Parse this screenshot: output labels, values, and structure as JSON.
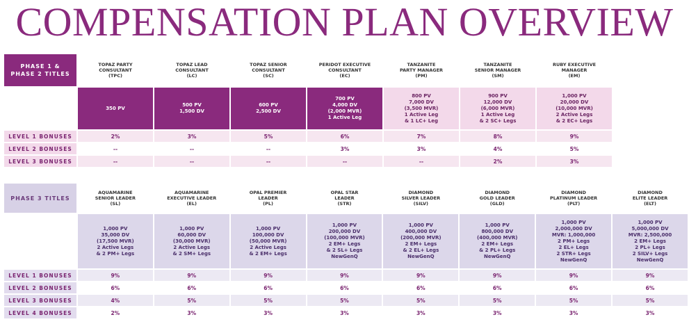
{
  "title": "COMPENSATION PLAN OVERVIEW",
  "phase12": {
    "label_line1": "PHASE 1 &",
    "label_line2": "PHASE 2 TITLES",
    "titles": [
      {
        "name": "TOPAZ PARTY\nCONSULTANT\n(TPC)",
        "req": "350 PV"
      },
      {
        "name": "TOPAZ LEAD\nCONSULTANT\n(LC)",
        "req": "500 PV\n1,500 DV"
      },
      {
        "name": "TOPAZ SENIOR\nCONSULTANT\n(SC)",
        "req": "600 PV\n2,500 DV"
      },
      {
        "name": "PERIDOT EXECUTIVE\nCONSULTANT\n(EC)",
        "req": "700 PV\n4,000 DV\n(2,000 MVR)\n1 Active Leg"
      },
      {
        "name": "TANZANITE\nPARTY MANAGER\n(PM)",
        "req": "800 PV\n7,000 DV\n(3,500 MVR)\n1 Active Leg\n& 1 LC+ Leg"
      },
      {
        "name": "TANZANITE\nSENIOR MANAGER\n(SM)",
        "req": "900 PV\n12,000 DV\n(6,000 MVR)\n1 Active Leg\n& 2 SC+ Legs"
      },
      {
        "name": "RUBY EXECUTIVE\nMANAGER\n(EM)",
        "req": "1,000 PV\n20,000 DV\n(10,000 MVR)\n2 Active Legs\n& 2 EC+ Legs"
      }
    ],
    "levels": [
      {
        "label": "LEVEL 1 BONUSES",
        "values": [
          "2%",
          "3%",
          "5%",
          "6%",
          "7%",
          "8%",
          "9%"
        ]
      },
      {
        "label": "LEVEL 2 BONUSES",
        "values": [
          "--",
          "--",
          "--",
          "3%",
          "3%",
          "4%",
          "5%"
        ]
      },
      {
        "label": "LEVEL 3 BONUSES",
        "values": [
          "--",
          "--",
          "--",
          "--",
          "--",
          "2%",
          "3%"
        ]
      }
    ]
  },
  "phase3": {
    "label": "PHASE 3 TITLES",
    "titles": [
      {
        "name": "AQUAMARINE\nSENIOR LEADER\n(SL)",
        "req": "1,000 PV\n35,000 DV\n(17,500 MVR)\n2 Active Legs\n& 2 PM+ Legs"
      },
      {
        "name": "AQUAMARINE\nEXECUTIVE LEADER\n(EL)",
        "req": "1,000 PV\n60,000 DV\n(30,000 MVR)\n2 Active Legs\n& 2 SM+ Legs"
      },
      {
        "name": "OPAL PREMIER\nLEADER\n(PL)",
        "req": "1,000 PV\n100,000 DV\n(50,000 MVR)\n2 Active Legs\n& 2 EM+ Legs"
      },
      {
        "name": "OPAL STAR\nLEADER\n(STR)",
        "req": "1,000 PV\n200,000 DV\n(100,000 MVR)\n2 EM+ Legs\n& 2 SL+ Legs\nNewGenQ"
      },
      {
        "name": "DIAMOND\nSILVER LEADER\n(SILV)",
        "req": "1,000 PV\n400,000 DV\n(200,000 MVR)\n2 EM+ Legs\n& 2 EL+ Legs\nNewGenQ"
      },
      {
        "name": "DIAMOND\nGOLD LEADER\n(GLD)",
        "req": "1,000 PV\n800,000 DV\n(400,000 MVR)\n2 EM+ Legs\n& 2 PL+ Legs\nNewGenQ"
      },
      {
        "name": "DIAMOND\nPLATINUM LEADER\n(PLT)",
        "req": "1,000 PV\n2,000,000 DV\nMVR: 1,000,000\n2 PM+ Legs\n2 EL+ Legs\n2 STR+ Legs\nNewGenQ"
      },
      {
        "name": "DIAMOND\nELITE LEADER\n(ELT)",
        "req": "1,000 PV\n5,000,000 DV\nMVR: 2,500,000\n2 EM+ Legs\n2 PL+ Legs\n2 SILV+ Legs\nNewGenQ"
      }
    ],
    "levels": [
      {
        "label": "LEVEL 1 BONUSES",
        "values": [
          "9%",
          "9%",
          "9%",
          "9%",
          "9%",
          "9%",
          "9%",
          "9%"
        ]
      },
      {
        "label": "LEVEL 2 BONUSES",
        "values": [
          "6%",
          "6%",
          "6%",
          "6%",
          "6%",
          "6%",
          "6%",
          "6%"
        ]
      },
      {
        "label": "LEVEL 3 BONUSES",
        "values": [
          "4%",
          "5%",
          "5%",
          "5%",
          "5%",
          "5%",
          "5%",
          "5%"
        ]
      },
      {
        "label": "LEVEL 4 BONUSES",
        "values": [
          "2%",
          "3%",
          "3%",
          "3%",
          "3%",
          "3%",
          "3%",
          "3%"
        ]
      }
    ]
  }
}
